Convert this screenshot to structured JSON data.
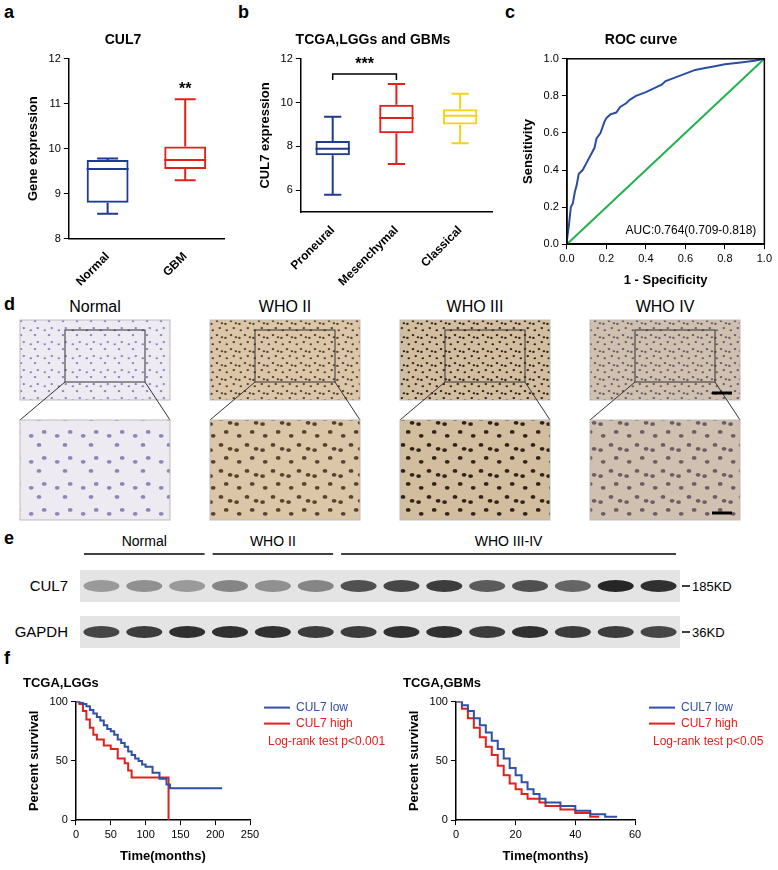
{
  "chart_data": [
    {
      "panel": "a",
      "type": "boxplot",
      "title": "CUL7",
      "y_label": "Gene expression",
      "categories": [
        "Normal",
        "GBM"
      ],
      "values": [
        {
          "min": 8.55,
          "q1": 8.8,
          "median": 9.55,
          "q3": 9.75,
          "max": 9.78
        },
        {
          "min": 9.3,
          "q1": 9.55,
          "median": 9.75,
          "q3": 10.05,
          "max": 11.1
        }
      ],
      "colors": [
        "#1f3a93",
        "#e3201b"
      ],
      "ylim": [
        8,
        12
      ],
      "yticks": [
        8,
        9,
        10,
        11,
        12
      ],
      "grid": false,
      "annotations": [
        {
          "category": "GBM",
          "text": "**"
        }
      ]
    },
    {
      "panel": "b",
      "type": "boxplot",
      "title": "TCGA,LGGs and GBMs",
      "y_label": "CUL7 expression",
      "categories": [
        "Proneural",
        "Mesenchymal",
        "Classical"
      ],
      "values": [
        {
          "min": 5.8,
          "q1": 7.6,
          "median": 7.9,
          "q3": 8.25,
          "max": 9.35
        },
        {
          "min": 7.2,
          "q1": 8.6,
          "median": 9.3,
          "q3": 9.9,
          "max": 10.85
        },
        {
          "min": 8.15,
          "q1": 9.0,
          "median": 9.4,
          "q3": 9.7,
          "max": 10.4
        }
      ],
      "colors": [
        "#1f3a93",
        "#e3201b",
        "#f2d21b"
      ],
      "ylim": [
        5,
        12
      ],
      "yticks": [
        6,
        8,
        10,
        12
      ],
      "grid": false,
      "annotations": [
        {
          "from": "Proneural",
          "to": "Mesenchymal",
          "text": "***"
        }
      ]
    },
    {
      "panel": "c",
      "type": "line",
      "title": "ROC curve",
      "x_label": "1 - Specificity",
      "y_label": "Sensitivity",
      "series": [
        {
          "color": "#2b4ea2",
          "line_style": "solid",
          "x": [
            0,
            0,
            0.01,
            0.02,
            0.03,
            0.04,
            0.05,
            0.06,
            0.08,
            0.1,
            0.12,
            0.14,
            0.15,
            0.17,
            0.19,
            0.2,
            0.22,
            0.25,
            0.27,
            0.3,
            0.32,
            0.35,
            0.4,
            0.44,
            0.48,
            0.5,
            0.55,
            0.6,
            0.65,
            0.7,
            0.75,
            0.8,
            0.88,
            0.95,
            1
          ],
          "values": [
            0,
            0.02,
            0.1,
            0.2,
            0.22,
            0.28,
            0.32,
            0.38,
            0.4,
            0.44,
            0.48,
            0.52,
            0.57,
            0.6,
            0.66,
            0.68,
            0.7,
            0.71,
            0.74,
            0.76,
            0.78,
            0.8,
            0.82,
            0.84,
            0.86,
            0.88,
            0.9,
            0.92,
            0.94,
            0.95,
            0.96,
            0.97,
            0.98,
            0.99,
            1
          ]
        },
        {
          "color": "#22b14c",
          "line_style": "solid",
          "x": [
            0,
            1
          ],
          "values": [
            0,
            1
          ]
        }
      ],
      "xlim": [
        0,
        1
      ],
      "xticks": [
        {
          "value": 0,
          "label": "0.0"
        },
        0.2,
        0.4,
        0.6,
        0.8,
        {
          "value": 1,
          "label": "1.0"
        }
      ],
      "ylim": [
        0,
        1
      ],
      "yticks": [
        {
          "value": 0,
          "label": "0.0"
        },
        0.2,
        0.4,
        0.6,
        0.8,
        {
          "value": 1,
          "label": "1.0"
        }
      ],
      "grid": false,
      "annotations": [
        {
          "text": "AUC:0.764(0.709-0.818)",
          "color": "#000000"
        }
      ]
    },
    {
      "panel": "f",
      "type": "line",
      "title": "TCGA,LGGs",
      "x_label": "Time(months)",
      "y_label": "Percent survival",
      "series": [
        {
          "name": "CUL7 low",
          "color": "#2f4fa8",
          "line_style": "step",
          "x": [
            0,
            5,
            10,
            15,
            20,
            25,
            30,
            35,
            40,
            45,
            50,
            55,
            60,
            65,
            70,
            75,
            80,
            85,
            90,
            95,
            100,
            110,
            120,
            130,
            135,
            210
          ],
          "values": [
            100,
            99,
            98,
            96,
            93,
            90,
            87,
            84,
            80,
            77,
            75,
            72,
            68,
            65,
            62,
            58,
            55,
            52,
            50,
            47,
            45,
            40,
            35,
            30,
            27,
            27
          ]
        },
        {
          "name": "CUL7 high",
          "color": "#e3201b",
          "line_style": "step",
          "x": [
            0,
            5,
            10,
            15,
            20,
            25,
            30,
            40,
            50,
            60,
            70,
            75,
            80,
            100,
            110,
            120,
            130,
            133
          ],
          "values": [
            100,
            98,
            92,
            85,
            78,
            72,
            68,
            63,
            60,
            52,
            48,
            42,
            36,
            36,
            36,
            36,
            36,
            0
          ]
        }
      ],
      "xlim": [
        0,
        250
      ],
      "xticks": [
        0,
        50,
        100,
        150,
        200,
        250
      ],
      "ylim": [
        0,
        100
      ],
      "yticks": [
        0,
        50,
        100
      ],
      "grid": false,
      "legend": "right",
      "annotations": [
        {
          "text": "Log-rank test p<0.001",
          "color": "#e3201b"
        }
      ]
    },
    {
      "type": "line",
      "title": "TCGA,GBMs",
      "x_label": "Time(months)",
      "y_label": "Percent survival",
      "series": [
        {
          "name": "CUL7 low",
          "color": "#2f4fa8",
          "line_style": "step",
          "x": [
            0,
            2,
            4,
            6,
            8,
            10,
            12,
            14,
            16,
            18,
            20,
            22,
            24,
            26,
            28,
            30,
            35,
            40,
            45,
            50,
            54
          ],
          "values": [
            100,
            97,
            92,
            86,
            80,
            74,
            67,
            60,
            52,
            44,
            38,
            32,
            26,
            22,
            18,
            15,
            12,
            8,
            5,
            3,
            3
          ]
        },
        {
          "name": "CUL7 high",
          "color": "#e3201b",
          "line_style": "step",
          "x": [
            0,
            2,
            4,
            6,
            8,
            10,
            12,
            14,
            16,
            18,
            20,
            22,
            24,
            28,
            30,
            35,
            40,
            45,
            48
          ],
          "values": [
            100,
            94,
            86,
            78,
            70,
            62,
            55,
            46,
            38,
            31,
            26,
            22,
            18,
            15,
            12,
            9,
            6,
            3,
            3
          ]
        }
      ],
      "xlim": [
        0,
        60
      ],
      "xticks": [
        0,
        20,
        40,
        60
      ],
      "ylim": [
        0,
        100
      ],
      "yticks": [
        0,
        50,
        100
      ],
      "grid": false,
      "legend": "right",
      "annotations": [
        {
          "text": "Log-rank test p<0.05",
          "color": "#e3201b"
        }
      ]
    }
  ],
  "ihc": {
    "panel": "d",
    "columns": [
      "Normal",
      "WHO II",
      "WHO III",
      "WHO IV"
    ]
  },
  "western_blot": {
    "panel": "e",
    "groups": [
      {
        "name": "Normal",
        "lanes": 3
      },
      {
        "name": "WHO II",
        "lanes": 3
      },
      {
        "name": "WHO III-IV",
        "lanes": 8
      }
    ],
    "rows": [
      {
        "name": "CUL7",
        "size": "185KD",
        "intensity": [
          0.35,
          0.4,
          0.35,
          0.45,
          0.4,
          0.45,
          0.7,
          0.75,
          0.8,
          0.65,
          0.7,
          0.6,
          0.9,
          0.85
        ]
      },
      {
        "name": "GAPDH",
        "size": "36KD",
        "intensity": [
          0.75,
          0.8,
          0.85,
          0.85,
          0.85,
          0.8,
          0.8,
          0.85,
          0.85,
          0.8,
          0.85,
          0.8,
          0.8,
          0.75
        ]
      }
    ]
  }
}
